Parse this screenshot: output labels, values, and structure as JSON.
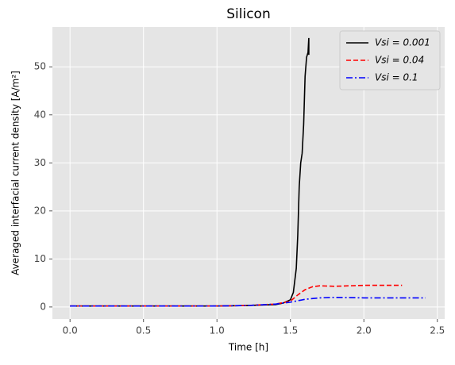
{
  "chart_data": {
    "type": "line",
    "title": "Silicon",
    "xlabel": "Time [h]",
    "ylabel": "Averaged interfacial current density [A/m²]",
    "xlim": [
      -0.12,
      2.55
    ],
    "ylim": [
      -2.5,
      58.3
    ],
    "xticks": [
      {
        "value": 0,
        "label": "0.0"
      },
      {
        "value": 0.5,
        "label": "0.5"
      },
      {
        "value": 1,
        "label": "1.0"
      },
      {
        "value": 1.5,
        "label": "1.5"
      },
      {
        "value": 2,
        "label": "2.0"
      },
      {
        "value": 2.5,
        "label": "2.5"
      }
    ],
    "yticks": [
      0,
      10,
      20,
      30,
      40,
      50
    ],
    "grid": true,
    "legend": "upper right",
    "series": [
      {
        "name": "Vsi = 0.001",
        "color": "#000000",
        "dash": "solid",
        "x": [
          0,
          0.5,
          1.0,
          1.2,
          1.4,
          1.45,
          1.5,
          1.52,
          1.54,
          1.55,
          1.56,
          1.57,
          1.58,
          1.59,
          1.6,
          1.61,
          1.62,
          1.625,
          1.625
        ],
        "values": [
          0.2,
          0.2,
          0.2,
          0.3,
          0.5,
          0.8,
          1.5,
          3,
          8,
          15,
          25,
          30,
          32,
          38,
          48,
          52,
          53,
          56,
          52.5
        ]
      },
      {
        "name": "Vsi = 0.04",
        "color": "#ff0000",
        "dash": "dashed",
        "x": [
          0,
          0.5,
          1.0,
          1.2,
          1.4,
          1.5,
          1.55,
          1.6,
          1.65,
          1.7,
          1.8,
          2.0,
          2.26
        ],
        "values": [
          0.2,
          0.2,
          0.2,
          0.3,
          0.6,
          1.2,
          2.5,
          3.6,
          4.2,
          4.4,
          4.3,
          4.5,
          4.5
        ]
      },
      {
        "name": "Vsi = 0.1",
        "color": "#0000ff",
        "dash": "dashdot",
        "x": [
          0,
          0.5,
          1.0,
          1.2,
          1.4,
          1.5,
          1.6,
          1.7,
          1.8,
          2.0,
          2.42
        ],
        "values": [
          0.2,
          0.2,
          0.2,
          0.3,
          0.6,
          1.0,
          1.6,
          1.9,
          2.0,
          1.9,
          1.9
        ]
      }
    ]
  }
}
